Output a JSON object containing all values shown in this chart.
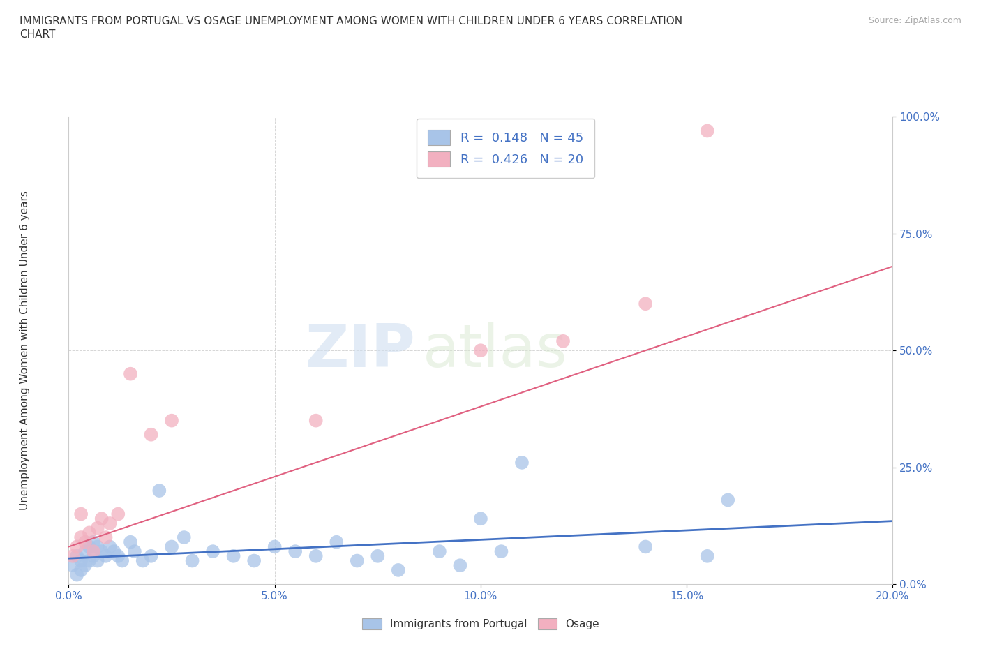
{
  "title_line1": "IMMIGRANTS FROM PORTUGAL VS OSAGE UNEMPLOYMENT AMONG WOMEN WITH CHILDREN UNDER 6 YEARS CORRELATION",
  "title_line2": "CHART",
  "source": "Source: ZipAtlas.com",
  "ylabel": "Unemployment Among Women with Children Under 6 years",
  "xlim": [
    0.0,
    0.2
  ],
  "ylim": [
    0.0,
    1.0
  ],
  "xticks": [
    0.0,
    0.05,
    0.1,
    0.15,
    0.2
  ],
  "xticklabels": [
    "0.0%",
    "5.0%",
    "10.0%",
    "15.0%",
    "20.0%"
  ],
  "yticks": [
    0.0,
    0.25,
    0.5,
    0.75,
    1.0
  ],
  "yticklabels": [
    "0.0%",
    "25.0%",
    "50.0%",
    "75.0%",
    "100.0%"
  ],
  "R_blue": 0.148,
  "N_blue": 45,
  "R_pink": 0.426,
  "N_pink": 20,
  "blue_color": "#a8c4e8",
  "pink_color": "#f2b0c0",
  "blue_line_color": "#4472c4",
  "pink_line_color": "#e06080",
  "legend_label_blue": "Immigrants from Portugal",
  "legend_label_pink": "Osage",
  "watermark_zip": "ZIP",
  "watermark_atlas": "atlas",
  "background_color": "#ffffff",
  "blue_scatter_x": [
    0.001,
    0.002,
    0.002,
    0.003,
    0.003,
    0.004,
    0.004,
    0.005,
    0.005,
    0.006,
    0.006,
    0.007,
    0.007,
    0.008,
    0.009,
    0.01,
    0.011,
    0.012,
    0.013,
    0.015,
    0.016,
    0.018,
    0.02,
    0.022,
    0.025,
    0.028,
    0.03,
    0.035,
    0.04,
    0.045,
    0.05,
    0.055,
    0.06,
    0.065,
    0.07,
    0.075,
    0.08,
    0.09,
    0.095,
    0.1,
    0.105,
    0.11,
    0.14,
    0.155,
    0.16
  ],
  "blue_scatter_y": [
    0.04,
    0.06,
    0.02,
    0.05,
    0.03,
    0.07,
    0.04,
    0.08,
    0.05,
    0.06,
    0.09,
    0.05,
    0.08,
    0.07,
    0.06,
    0.08,
    0.07,
    0.06,
    0.05,
    0.09,
    0.07,
    0.05,
    0.06,
    0.2,
    0.08,
    0.1,
    0.05,
    0.07,
    0.06,
    0.05,
    0.08,
    0.07,
    0.06,
    0.09,
    0.05,
    0.06,
    0.03,
    0.07,
    0.04,
    0.14,
    0.07,
    0.26,
    0.08,
    0.06,
    0.18
  ],
  "pink_scatter_x": [
    0.001,
    0.002,
    0.003,
    0.004,
    0.005,
    0.006,
    0.007,
    0.008,
    0.009,
    0.01,
    0.012,
    0.015,
    0.02,
    0.025,
    0.06,
    0.1,
    0.12,
    0.14,
    0.155,
    0.003
  ],
  "pink_scatter_y": [
    0.06,
    0.08,
    0.1,
    0.09,
    0.11,
    0.07,
    0.12,
    0.14,
    0.1,
    0.13,
    0.15,
    0.45,
    0.32,
    0.35,
    0.35,
    0.5,
    0.52,
    0.6,
    0.97,
    0.15
  ],
  "blue_trendline_x": [
    0.0,
    0.2
  ],
  "blue_trendline_y": [
    0.055,
    0.135
  ],
  "pink_trendline_x": [
    0.0,
    0.2
  ],
  "pink_trendline_y": [
    0.08,
    0.68
  ]
}
